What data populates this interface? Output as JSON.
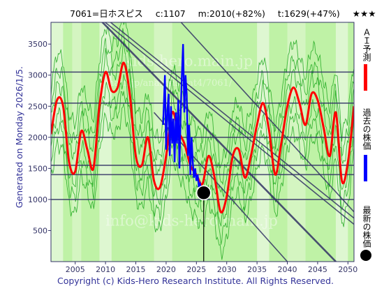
{
  "header": {
    "code_name": "7061=日ホスピス",
    "close": "c:1107",
    "median": "m:2010(+82%)",
    "target": "t:1629(+47%)",
    "stars": "★★★"
  },
  "generated_text": "Generated on Monday 2026/1/5.",
  "copyright": "Copyright (c) Kids-Hero Research Institute. All Rights Reserved.",
  "watermarks": [
    "kids-hero.main.jp",
    "main.jp/analysis/cat4/7061/",
    "info@kids-hero.main.jp"
  ],
  "legend": {
    "ai_forecast": "ＡＩ予測",
    "past_price": "過去の株価",
    "latest_price": "最新の株価"
  },
  "colors": {
    "forecast": "#ff0000",
    "past": "#0000ff",
    "latest": "#000000",
    "band": "#22aa22",
    "trend": "#333366",
    "background": "#bff2a6"
  },
  "chart_data": {
    "type": "line",
    "title": "7061=日ホスピス",
    "xlim": [
      2001,
      2051
    ],
    "ylim": [
      0,
      3850
    ],
    "x_ticks": [
      2005,
      2010,
      2015,
      2020,
      2025,
      2030,
      2035,
      2040,
      2045,
      2050
    ],
    "y_ticks": [
      500,
      1000,
      1500,
      2000,
      2500,
      3000,
      3500
    ],
    "x_tick_labels": [
      "2005",
      "2010",
      "2015",
      "2020",
      "2025",
      "2030",
      "2035",
      "2040",
      "2045",
      "2050"
    ],
    "y_tick_labels": [
      "500",
      "1000",
      "1500",
      "2000",
      "2500",
      "3000",
      "3500"
    ],
    "horizontal_levels": [
      1000,
      1400,
      1550,
      2000,
      2550,
      3050
    ],
    "trend_lines": [
      {
        "x": [
          2000,
          2051
        ],
        "y": [
          4700,
          700
        ]
      },
      {
        "x": [
          2003,
          2051
        ],
        "y": [
          4400,
          600
        ]
      },
      {
        "x": [
          2009,
          2048
        ],
        "y": [
          3900,
          0
        ]
      },
      {
        "x": [
          2018,
          2040
        ],
        "y": [
          2400,
          0
        ]
      },
      {
        "x": [
          2022,
          2051
        ],
        "y": [
          3900,
          800
        ]
      }
    ],
    "series": [
      {
        "name": "ＡＩ予測",
        "x": [
          2001,
          2002,
          2003,
          2004,
          2005,
          2006,
          2007,
          2008,
          2009,
          2010,
          2011,
          2012,
          2013,
          2014,
          2015,
          2016,
          2017,
          2018,
          2019,
          2020,
          2021,
          2022,
          2023,
          2024,
          2025,
          2026,
          2027,
          2028,
          2029,
          2030,
          2031,
          2032,
          2033,
          2034,
          2035,
          2036,
          2037,
          2038,
          2039,
          2040,
          2041,
          2042,
          2043,
          2044,
          2045,
          2046,
          2047,
          2048,
          2049,
          2050,
          2051
        ],
        "values": [
          2050,
          2600,
          2500,
          1600,
          1450,
          2100,
          1800,
          1500,
          2500,
          3050,
          2750,
          2800,
          3200,
          2700,
          1700,
          1550,
          2000,
          1300,
          1200,
          1700,
          2400,
          2100,
          1900,
          1550,
          1400,
          1250,
          1700,
          1350,
          800,
          1050,
          1700,
          1800,
          1350,
          1700,
          2200,
          2550,
          2100,
          1400,
          1900,
          2500,
          2800,
          2550,
          2200,
          2700,
          2600,
          2150,
          1700,
          2400,
          1300,
          1600,
          2500
        ]
      },
      {
        "name": "過去の株価",
        "x": [
          2019.5,
          2019.8,
          2020.0,
          2020.2,
          2020.4,
          2020.6,
          2020.8,
          2021.0,
          2021.2,
          2021.4,
          2021.6,
          2021.8,
          2022.0,
          2022.2,
          2022.4,
          2022.6,
          2022.8,
          2023.0,
          2023.2,
          2023.4,
          2023.6,
          2023.8,
          2024.0,
          2024.2,
          2024.4,
          2024.6,
          2024.8,
          2025.0,
          2025.2,
          2025.4,
          2025.6,
          2025.8
        ],
        "values": [
          2200,
          3000,
          1800,
          2400,
          2700,
          1700,
          2500,
          1900,
          2300,
          1600,
          2400,
          1900,
          2600,
          1500,
          2400,
          3000,
          3500,
          2400,
          3000,
          2700,
          1700,
          2200,
          1400,
          2000,
          1600,
          1350,
          1500,
          1300,
          1400,
          1200,
          1250,
          1150
        ]
      }
    ],
    "latest_point": {
      "x": 2026.2,
      "y": 1107
    }
  }
}
